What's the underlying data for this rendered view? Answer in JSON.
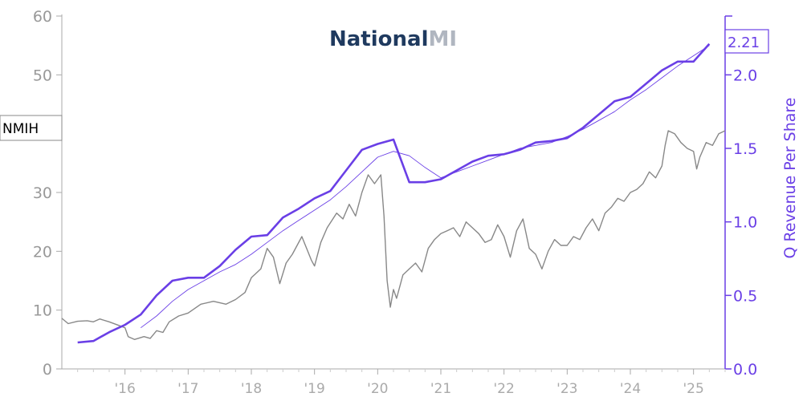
{
  "logo": {
    "word": "National",
    "mark": "MI",
    "word_color": "#1f3a5f",
    "mark_color": "#b0b6c0"
  },
  "ticker_label": "NMIH",
  "colors": {
    "price": "#888888",
    "revenue": "#6a3fe6",
    "revenue_trend": "#6a3fe6",
    "left_axis": "#aaaaaa"
  },
  "chart_data": {
    "type": "line",
    "xlabel": "",
    "x_tick_labels": [
      {
        "year": 2016,
        "label": "'16"
      },
      {
        "year": 2017,
        "label": "'17"
      },
      {
        "year": 2018,
        "label": "'18"
      },
      {
        "year": 2019,
        "label": "'19"
      },
      {
        "year": 2020,
        "label": "'20"
      },
      {
        "year": 2021,
        "label": "'21"
      },
      {
        "year": 2022,
        "label": "'22"
      },
      {
        "year": 2023,
        "label": "'23"
      },
      {
        "year": 2024,
        "label": "'24"
      },
      {
        "year": 2025,
        "label": "'25"
      }
    ],
    "xlim": [
      2015.0,
      2025.5
    ],
    "left_axis": {
      "label": "",
      "ylim": [
        0,
        60
      ],
      "ticks": [
        "0",
        "10",
        "20",
        "30",
        "40",
        "50",
        "60"
      ]
    },
    "right_axis": {
      "label": "Q Revenue Per Share",
      "ylim": [
        0,
        2.4
      ],
      "ticks": [
        "0.0",
        "0.5",
        "1.0",
        "1.5",
        "2.0"
      ]
    },
    "last_value_label": "2.21",
    "series": [
      {
        "name": "NMIH",
        "axis": "left",
        "x": [
          2015.0,
          2015.1,
          2015.25,
          2015.4,
          2015.5,
          2015.6,
          2015.75,
          2015.9,
          2016.0,
          2016.05,
          2016.15,
          2016.3,
          2016.4,
          2016.5,
          2016.6,
          2016.7,
          2016.85,
          2017.0,
          2017.2,
          2017.4,
          2017.6,
          2017.75,
          2017.9,
          2018.0,
          2018.15,
          2018.25,
          2018.35,
          2018.45,
          2018.55,
          2018.65,
          2018.8,
          2018.95,
          2019.0,
          2019.1,
          2019.2,
          2019.35,
          2019.45,
          2019.55,
          2019.65,
          2019.75,
          2019.85,
          2019.95,
          2020.05,
          2020.1,
          2020.15,
          2020.2,
          2020.25,
          2020.3,
          2020.4,
          2020.5,
          2020.6,
          2020.7,
          2020.8,
          2020.9,
          2021.0,
          2021.1,
          2021.2,
          2021.3,
          2021.4,
          2021.5,
          2021.6,
          2021.7,
          2021.8,
          2021.9,
          2022.0,
          2022.1,
          2022.2,
          2022.3,
          2022.4,
          2022.5,
          2022.6,
          2022.7,
          2022.8,
          2022.9,
          2023.0,
          2023.1,
          2023.2,
          2023.3,
          2023.4,
          2023.5,
          2023.6,
          2023.7,
          2023.8,
          2023.9,
          2024.0,
          2024.1,
          2024.2,
          2024.3,
          2024.4,
          2024.5,
          2024.55,
          2024.6,
          2024.7,
          2024.8,
          2024.9,
          2025.0,
          2025.05,
          2025.1,
          2025.2,
          2025.3,
          2025.4,
          2025.5
        ],
        "values": [
          8.6,
          7.7,
          8.1,
          8.2,
          8.0,
          8.5,
          8.0,
          7.4,
          7.0,
          5.5,
          5.0,
          5.5,
          5.2,
          6.5,
          6.2,
          8.0,
          9.0,
          9.5,
          11.0,
          11.5,
          11.0,
          11.8,
          13.0,
          15.5,
          17.0,
          20.5,
          19.0,
          14.5,
          18.0,
          19.5,
          22.5,
          18.5,
          17.5,
          21.5,
          24.0,
          26.5,
          25.5,
          28.0,
          26.0,
          30.0,
          33.0,
          31.5,
          33.0,
          26.0,
          15.0,
          10.5,
          13.5,
          12.0,
          16.0,
          17.0,
          18.0,
          16.5,
          20.5,
          22.0,
          23.0,
          23.5,
          24.0,
          22.5,
          25.0,
          24.0,
          23.0,
          21.5,
          22.0,
          24.5,
          22.5,
          19.0,
          23.5,
          25.5,
          20.5,
          19.5,
          17.0,
          20.0,
          22.0,
          21.0,
          21.0,
          22.5,
          22.0,
          24.0,
          25.5,
          23.5,
          26.5,
          27.5,
          29.0,
          28.5,
          30.0,
          30.5,
          31.5,
          33.5,
          32.5,
          34.5,
          38.0,
          40.5,
          40.0,
          38.5,
          37.5,
          37.0,
          34.0,
          36.0,
          38.5,
          38.0,
          40.0,
          40.5
        ]
      },
      {
        "name": "",
        "axis": "right",
        "x": [
          2015.25,
          2015.5,
          2015.75,
          2016.0,
          2016.25,
          2016.5,
          2016.75,
          2017.0,
          2017.25,
          2017.5,
          2017.75,
          2018.0,
          2018.25,
          2018.5,
          2018.75,
          2019.0,
          2019.25,
          2019.5,
          2019.75,
          2020.0,
          2020.25,
          2020.5,
          2020.75,
          2021.0,
          2021.25,
          2021.5,
          2021.75,
          2022.0,
          2022.25,
          2022.5,
          2022.75,
          2023.0,
          2023.25,
          2023.5,
          2023.75,
          2024.0,
          2024.25,
          2024.5,
          2024.75,
          2025.0,
          2025.25
        ],
        "values": [
          0.18,
          0.19,
          0.25,
          0.3,
          0.37,
          0.5,
          0.6,
          0.62,
          0.62,
          0.7,
          0.81,
          0.9,
          0.91,
          1.03,
          1.09,
          1.16,
          1.21,
          1.35,
          1.49,
          1.53,
          1.56,
          1.27,
          1.27,
          1.29,
          1.35,
          1.41,
          1.45,
          1.46,
          1.49,
          1.54,
          1.55,
          1.57,
          1.64,
          1.73,
          1.82,
          1.85,
          1.94,
          2.03,
          2.09,
          2.09,
          2.21
        ]
      },
      {
        "name": "",
        "axis": "right",
        "x": [
          2016.25,
          2016.5,
          2016.75,
          2017.0,
          2017.25,
          2017.5,
          2017.75,
          2018.0,
          2018.25,
          2018.5,
          2018.75,
          2019.0,
          2019.25,
          2019.5,
          2019.75,
          2020.0,
          2020.25,
          2020.5,
          2020.75,
          2021.0,
          2021.25,
          2021.5,
          2021.75,
          2022.0,
          2022.25,
          2022.5,
          2022.75,
          2023.0,
          2023.25,
          2023.5,
          2023.75,
          2024.0,
          2024.25,
          2024.5,
          2024.75,
          2025.0,
          2025.25
        ],
        "values": [
          0.28,
          0.36,
          0.46,
          0.54,
          0.6,
          0.66,
          0.71,
          0.78,
          0.86,
          0.94,
          1.01,
          1.08,
          1.15,
          1.24,
          1.34,
          1.44,
          1.48,
          1.45,
          1.37,
          1.3,
          1.34,
          1.38,
          1.42,
          1.46,
          1.5,
          1.52,
          1.54,
          1.58,
          1.63,
          1.69,
          1.75,
          1.83,
          1.9,
          1.98,
          2.06,
          2.13,
          2.2
        ]
      }
    ]
  }
}
